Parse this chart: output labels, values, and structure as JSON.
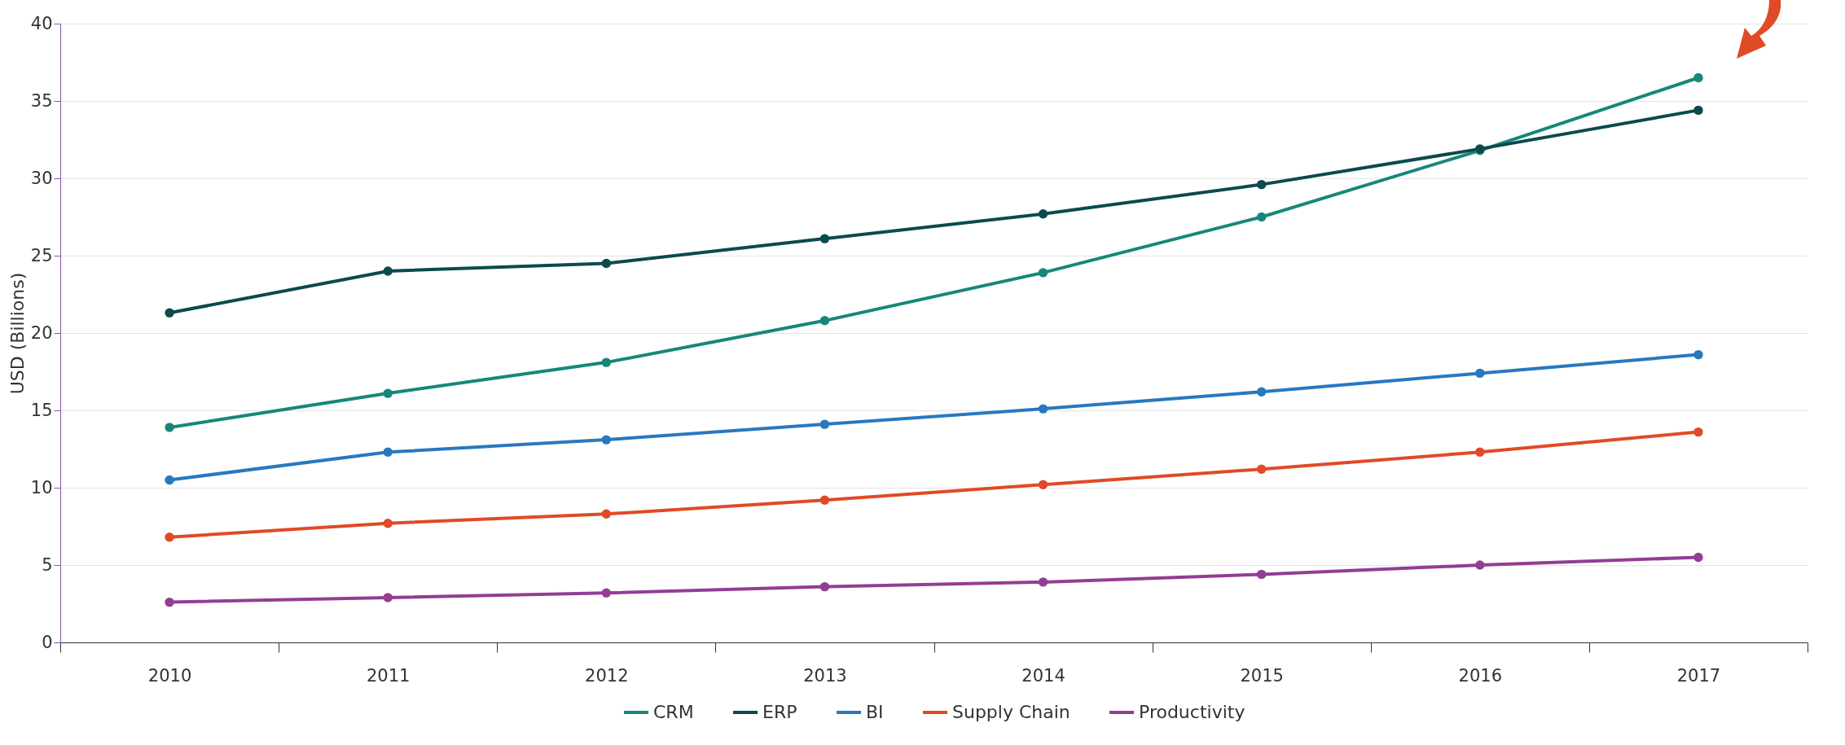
{
  "chart_data": {
    "type": "line",
    "ylabel": "USD (Billions)",
    "categories": [
      "2010",
      "2011",
      "2012",
      "2013",
      "2014",
      "2015",
      "2016",
      "2017"
    ],
    "ylim": [
      0,
      40
    ],
    "yticks": [
      0,
      5,
      10,
      15,
      20,
      25,
      30,
      35,
      40
    ],
    "grid": "y",
    "legend": "bottom",
    "marker": "circle",
    "line_style": "solid",
    "series": [
      {
        "name": "CRM",
        "color": "#17877a",
        "values": [
          13.9,
          16.1,
          18.1,
          20.8,
          23.9,
          27.5,
          31.8,
          36.5
        ]
      },
      {
        "name": "ERP",
        "color": "#0c4a4c",
        "values": [
          21.3,
          24.0,
          24.5,
          26.1,
          27.7,
          29.6,
          31.9,
          34.4
        ]
      },
      {
        "name": "BI",
        "color": "#2878c0",
        "values": [
          10.5,
          12.3,
          13.1,
          14.1,
          15.1,
          16.2,
          17.4,
          18.6
        ]
      },
      {
        "name": "Supply Chain",
        "color": "#e04a26",
        "values": [
          6.8,
          7.7,
          8.3,
          9.2,
          10.2,
          11.2,
          12.3,
          13.6
        ]
      },
      {
        "name": "Productivity",
        "color": "#933d94",
        "values": [
          2.6,
          2.9,
          3.2,
          3.6,
          3.9,
          4.4,
          5.0,
          5.5
        ]
      }
    ]
  }
}
